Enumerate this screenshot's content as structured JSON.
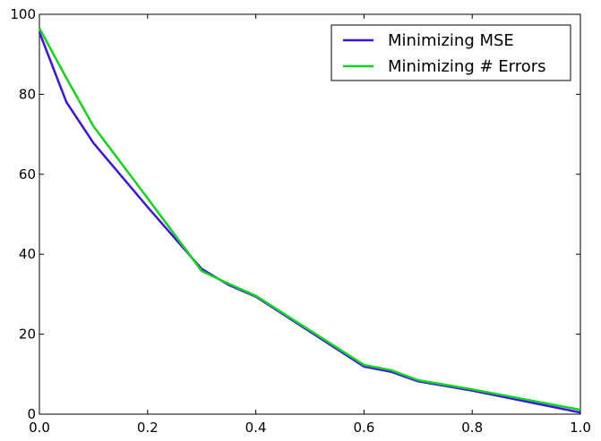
{
  "chart_data": {
    "type": "line",
    "title": "",
    "xlabel": "",
    "ylabel": "",
    "xlim": [
      0.0,
      1.0
    ],
    "ylim": [
      0,
      100
    ],
    "grid": false,
    "legend_position": "top-right",
    "x_ticks": [
      0.0,
      0.2,
      0.4,
      0.6,
      0.8,
      1.0
    ],
    "x_tick_labels": [
      "0.0",
      "0.2",
      "0.4",
      "0.6",
      "0.8",
      "1.0"
    ],
    "y_ticks": [
      0,
      20,
      40,
      60,
      80,
      100
    ],
    "y_tick_labels": [
      "0",
      "20",
      "40",
      "60",
      "80",
      "100"
    ],
    "series": [
      {
        "name": "Minimizing MSE",
        "color": "#3b12e6",
        "x": [
          0.0,
          0.05,
          0.1,
          0.2,
          0.3,
          0.35,
          0.4,
          0.6,
          0.65,
          0.7,
          0.8,
          1.0
        ],
        "y": [
          95.5,
          78.0,
          67.8,
          51.8,
          36.3,
          32.3,
          29.4,
          11.9,
          10.6,
          8.2,
          5.9,
          0.4
        ]
      },
      {
        "name": "Minimizing # Errors",
        "color": "#11d41c",
        "x": [
          0.0,
          0.05,
          0.1,
          0.2,
          0.3,
          0.35,
          0.4,
          0.6,
          0.65,
          0.7,
          0.8,
          1.0
        ],
        "y": [
          96.5,
          84.0,
          72.0,
          54.0,
          35.8,
          32.6,
          29.6,
          12.3,
          11.0,
          8.5,
          6.2,
          1.1
        ]
      }
    ]
  }
}
